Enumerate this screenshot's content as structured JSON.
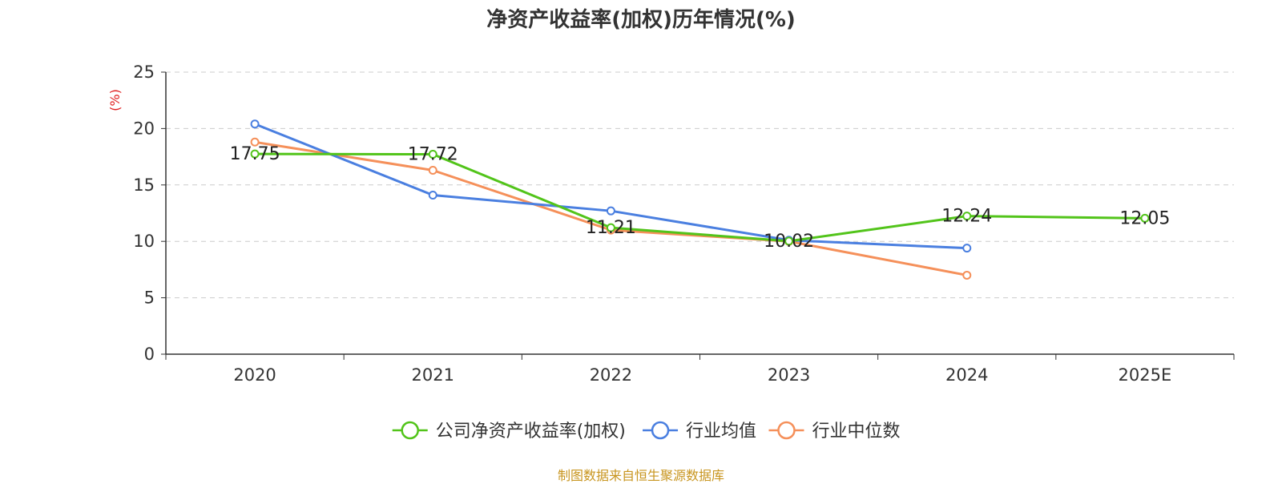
{
  "chart_data": {
    "type": "line",
    "title": "净资产收益率(加权)历年情况(%)",
    "ylabel": "(%)",
    "xlabel": "",
    "categories": [
      "2020",
      "2021",
      "2022",
      "2023",
      "2024",
      "2025E"
    ],
    "ylim": [
      0,
      25
    ],
    "yticks": [
      0,
      5,
      10,
      15,
      20,
      25
    ],
    "grid": true,
    "legend_position": "bottom",
    "series": [
      {
        "name": "公司净资产收益率(加权)",
        "color": "#52c41a",
        "values": [
          17.75,
          17.72,
          11.21,
          10.02,
          12.24,
          12.05
        ],
        "labels": [
          "17.75",
          "17.72",
          "11.21",
          "10.02",
          "12.24",
          "12.05"
        ]
      },
      {
        "name": "行业均值",
        "color": "#4a7fe0",
        "values": [
          20.4,
          14.1,
          12.7,
          10.1,
          9.4,
          null
        ]
      },
      {
        "name": "行业中位数",
        "color": "#f5905a",
        "values": [
          18.8,
          16.3,
          11.0,
          10.0,
          7.0,
          null
        ]
      }
    ]
  },
  "source": "制图数据来自恒生聚源数据库"
}
